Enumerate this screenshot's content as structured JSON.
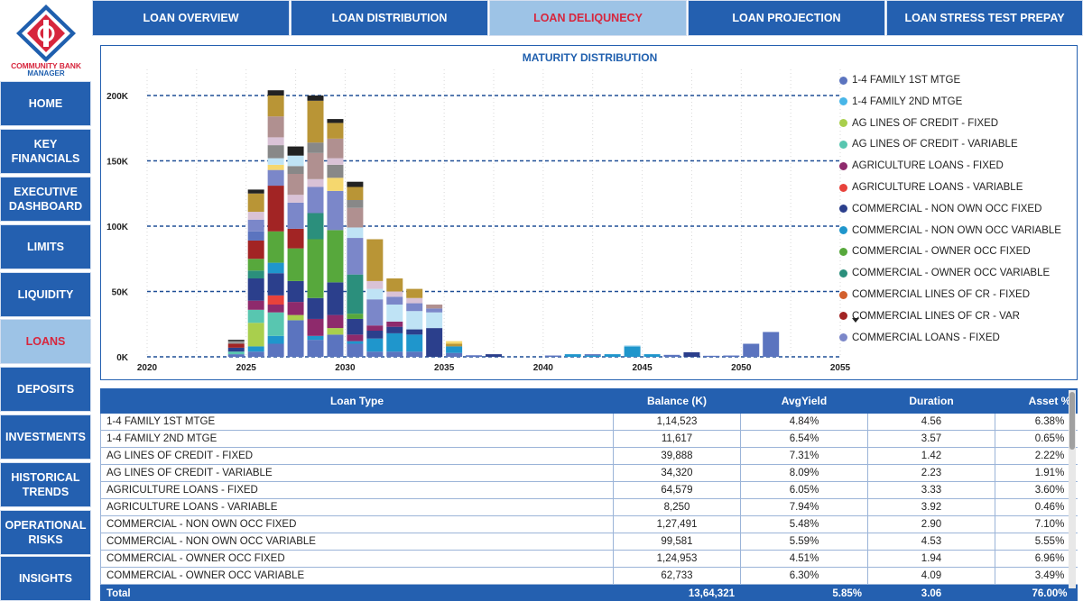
{
  "brand": {
    "line1": "COMMUNITY BANK",
    "line2": "MANAGER",
    "logo_icon": "bank-diamond-logo"
  },
  "colors": {
    "nav": "#2460b0",
    "nav_active": "#9dc3e6",
    "active_text": "#d7263d",
    "accent": "#1f5fae"
  },
  "sidebar": {
    "items": [
      {
        "label": "HOME",
        "active": false
      },
      {
        "label": "KEY\nFINANCIALS",
        "active": false
      },
      {
        "label": "EXECUTIVE\nDASHBOARD",
        "active": false
      },
      {
        "label": "LIMITS",
        "active": false
      },
      {
        "label": "LIQUIDITY",
        "active": false
      },
      {
        "label": "LOANS",
        "active": true
      },
      {
        "label": "DEPOSITS",
        "active": false
      },
      {
        "label": "INVESTMENTS",
        "active": false
      },
      {
        "label": "HISTORICAL\nTRENDS",
        "active": false
      },
      {
        "label": "OPERATIONAL\nRISKS",
        "active": false
      },
      {
        "label": "INSIGHTS",
        "active": false
      }
    ]
  },
  "tabs": [
    {
      "label": "LOAN OVERVIEW",
      "active": false
    },
    {
      "label": "LOAN DISTRIBUTION",
      "active": false
    },
    {
      "label": "LOAN DELIQUNECY",
      "active": true
    },
    {
      "label": "LOAN PROJECTION",
      "active": false
    },
    {
      "label": "LOAN STRESS TEST PREPAY",
      "active": false
    }
  ],
  "chart_data": {
    "type": "bar",
    "stacked": true,
    "title": "MATURITY DISTRIBUTION",
    "xlabel": "",
    "ylabel": "",
    "xlim": [
      2020,
      2055
    ],
    "ylim": [
      0,
      220000
    ],
    "x_ticks": [
      "2020",
      "2025",
      "2030",
      "2035",
      "2040",
      "2045",
      "2050",
      "2055"
    ],
    "y_ticks": [
      "0K",
      "50K",
      "100K",
      "150K",
      "200K"
    ],
    "y_tick_values": [
      0,
      50000,
      100000,
      150000,
      200000
    ],
    "grid": "horizontal-dashed",
    "legend": {
      "position": "right",
      "has_more": true,
      "more_icon": "caret-down-icon"
    },
    "series": [
      {
        "name": "1-4 FAMILY 1ST MTGE",
        "color": "#5b74bf"
      },
      {
        "name": "1-4 FAMILY 2ND MTGE",
        "color": "#48b6e8"
      },
      {
        "name": "AG LINES OF CREDIT - FIXED",
        "color": "#a9cf4d"
      },
      {
        "name": "AG LINES OF CREDIT - VARIABLE",
        "color": "#58c6b0"
      },
      {
        "name": "AGRICULTURE LOANS - FIXED",
        "color": "#8e2a6c"
      },
      {
        "name": "AGRICULTURE LOANS - VARIABLE",
        "color": "#e8423b"
      },
      {
        "name": "COMMERCIAL - NON OWN OCC FIXED",
        "color": "#2b3f8c"
      },
      {
        "name": "COMMERCIAL - NON OWN OCC VARIABLE",
        "color": "#1f96cc"
      },
      {
        "name": "COMMERCIAL - OWNER OCC FIXED",
        "color": "#57a83c"
      },
      {
        "name": "COMMERCIAL - OWNER OCC VARIABLE",
        "color": "#2b8f7c"
      },
      {
        "name": "COMMERCIAL LINES OF CR - FIXED",
        "color": "#d3602e"
      },
      {
        "name": "COMMERCIAL LINES OF CR - VAR",
        "color": "#a22424"
      },
      {
        "name": "COMMERCIAL LOANS - FIXED",
        "color": "#7b87c9"
      }
    ],
    "bars": [
      {
        "year": 2024,
        "segments": [
          [
            "#5b74bf",
            2000
          ],
          [
            "#58c6b0",
            2000
          ],
          [
            "#2b3f8c",
            3000
          ],
          [
            "#a22424",
            3000
          ],
          [
            "#999999",
            2000
          ],
          [
            "#222222",
            1000
          ]
        ]
      },
      {
        "year": 2025,
        "segments": [
          [
            "#5b74bf",
            4000
          ],
          [
            "#1f96cc",
            4000
          ],
          [
            "#a9cf4d",
            18000
          ],
          [
            "#58c6b0",
            10000
          ],
          [
            "#8e2a6c",
            7000
          ],
          [
            "#2b3f8c",
            17000
          ],
          [
            "#2b8f7c",
            6000
          ],
          [
            "#57a83c",
            9000
          ],
          [
            "#a22424",
            14000
          ],
          [
            "#5b74bf",
            7000
          ],
          [
            "#7b87c9",
            9000
          ],
          [
            "#d9c2d6",
            6000
          ],
          [
            "#b99536",
            14000
          ],
          [
            "#222222",
            3000
          ]
        ]
      },
      {
        "year": 2026,
        "segments": [
          [
            "#5b74bf",
            10000
          ],
          [
            "#1f96cc",
            6000
          ],
          [
            "#58c6b0",
            18000
          ],
          [
            "#8e2a6c",
            6000
          ],
          [
            "#e8423b",
            7000
          ],
          [
            "#2b3f8c",
            17000
          ],
          [
            "#1f96cc",
            8000
          ],
          [
            "#57a83c",
            24000
          ],
          [
            "#a22424",
            35000
          ],
          [
            "#7b87c9",
            12000
          ],
          [
            "#f5d76e",
            4000
          ],
          [
            "#bfe3f5",
            5000
          ],
          [
            "#888888",
            10000
          ],
          [
            "#d9c2d6",
            6000
          ],
          [
            "#b09090",
            16000
          ],
          [
            "#b99536",
            16000
          ],
          [
            "#222222",
            4000
          ]
        ]
      },
      {
        "year": 2027,
        "segments": [
          [
            "#5b74bf",
            28000
          ],
          [
            "#a9cf4d",
            4000
          ],
          [
            "#8e2a6c",
            10000
          ],
          [
            "#2b3f8c",
            16000
          ],
          [
            "#57a83c",
            25000
          ],
          [
            "#a22424",
            15000
          ],
          [
            "#7b87c9",
            20000
          ],
          [
            "#d9c2d6",
            6000
          ],
          [
            "#b09090",
            16000
          ],
          [
            "#888888",
            6000
          ],
          [
            "#bfe3f5",
            8000
          ],
          [
            "#222222",
            7000
          ]
        ]
      },
      {
        "year": 2028,
        "segments": [
          [
            "#5b74bf",
            13000
          ],
          [
            "#1f96cc",
            3000
          ],
          [
            "#8e2a6c",
            13000
          ],
          [
            "#2b3f8c",
            16000
          ],
          [
            "#57a83c",
            45000
          ],
          [
            "#2b8f7c",
            20000
          ],
          [
            "#7b87c9",
            20000
          ],
          [
            "#d9c2d6",
            6000
          ],
          [
            "#b09090",
            20000
          ],
          [
            "#888888",
            8000
          ],
          [
            "#b99536",
            32000
          ],
          [
            "#222222",
            4000
          ]
        ]
      },
      {
        "year": 2029,
        "segments": [
          [
            "#5b74bf",
            17000
          ],
          [
            "#a9cf4d",
            5000
          ],
          [
            "#8e2a6c",
            10000
          ],
          [
            "#2b3f8c",
            25000
          ],
          [
            "#57a83c",
            40000
          ],
          [
            "#7b87c9",
            30000
          ],
          [
            "#f5d76e",
            10000
          ],
          [
            "#888888",
            10000
          ],
          [
            "#d9c2d6",
            5000
          ],
          [
            "#b09090",
            15000
          ],
          [
            "#b99536",
            12000
          ],
          [
            "#222222",
            3000
          ]
        ]
      },
      {
        "year": 2030,
        "segments": [
          [
            "#5b74bf",
            10000
          ],
          [
            "#1f96cc",
            2000
          ],
          [
            "#8e2a6c",
            5000
          ],
          [
            "#2b3f8c",
            12000
          ],
          [
            "#57a83c",
            4000
          ],
          [
            "#2b8f7c",
            30000
          ],
          [
            "#7b87c9",
            28000
          ],
          [
            "#bfe3f5",
            8000
          ],
          [
            "#b09090",
            15000
          ],
          [
            "#888888",
            6000
          ],
          [
            "#b99536",
            10000
          ],
          [
            "#222222",
            4000
          ]
        ]
      },
      {
        "year": 2031,
        "segments": [
          [
            "#5b74bf",
            4000
          ],
          [
            "#1f96cc",
            10000
          ],
          [
            "#2b3f8c",
            6000
          ],
          [
            "#8e2a6c",
            4000
          ],
          [
            "#7b87c9",
            20000
          ],
          [
            "#bfe3f5",
            8000
          ],
          [
            "#d9c2d6",
            6000
          ],
          [
            "#b99536",
            32000
          ]
        ]
      },
      {
        "year": 2032,
        "segments": [
          [
            "#5b74bf",
            4000
          ],
          [
            "#1f96cc",
            14000
          ],
          [
            "#2b3f8c",
            5000
          ],
          [
            "#8e2a6c",
            4000
          ],
          [
            "#bfe3f5",
            13000
          ],
          [
            "#7b87c9",
            6000
          ],
          [
            "#d9c2d6",
            4000
          ],
          [
            "#b99536",
            10000
          ]
        ]
      },
      {
        "year": 2033,
        "segments": [
          [
            "#5b74bf",
            4000
          ],
          [
            "#1f96cc",
            13000
          ],
          [
            "#2b3f8c",
            4000
          ],
          [
            "#bfe3f5",
            14000
          ],
          [
            "#7b87c9",
            6000
          ],
          [
            "#d9c2d6",
            4000
          ],
          [
            "#b99536",
            7000
          ]
        ]
      },
      {
        "year": 2034,
        "segments": [
          [
            "#2b3f8c",
            22000
          ],
          [
            "#bfe3f5",
            12000
          ],
          [
            "#7b87c9",
            3000
          ],
          [
            "#b09090",
            3000
          ]
        ]
      },
      {
        "year": 2035,
        "segments": [
          [
            "#5b74bf",
            3000
          ],
          [
            "#1f96cc",
            5000
          ],
          [
            "#b99536",
            2000
          ],
          [
            "#f5d76e",
            2000
          ]
        ]
      },
      {
        "year": 2036,
        "segments": [
          [
            "#5b74bf",
            1200
          ]
        ]
      },
      {
        "year": 2037,
        "segments": [
          [
            "#2b3f8c",
            2000
          ]
        ]
      },
      {
        "year": 2040,
        "segments": [
          [
            "#5b74bf",
            1000
          ]
        ]
      },
      {
        "year": 2041,
        "segments": [
          [
            "#1f96cc",
            2000
          ]
        ]
      },
      {
        "year": 2042,
        "segments": [
          [
            "#1f96cc",
            1000
          ],
          [
            "#5b74bf",
            1000
          ]
        ]
      },
      {
        "year": 2043,
        "segments": [
          [
            "#1f96cc",
            2000
          ]
        ]
      },
      {
        "year": 2044,
        "segments": [
          [
            "#1f96cc",
            8000
          ],
          [
            "#bfe3f5",
            1000
          ]
        ]
      },
      {
        "year": 2045,
        "segments": [
          [
            "#1f96cc",
            2000
          ]
        ]
      },
      {
        "year": 2046,
        "segments": [
          [
            "#5b74bf",
            1500
          ]
        ]
      },
      {
        "year": 2047,
        "segments": [
          [
            "#2b3f8c",
            3500
          ]
        ]
      },
      {
        "year": 2048,
        "segments": [
          [
            "#5b74bf",
            800
          ]
        ]
      },
      {
        "year": 2049,
        "segments": [
          [
            "#5b74bf",
            1000
          ]
        ]
      },
      {
        "year": 2050,
        "segments": [
          [
            "#5b74bf",
            10000
          ]
        ]
      },
      {
        "year": 2051,
        "segments": [
          [
            "#5b74bf",
            19000
          ]
        ]
      }
    ]
  },
  "table": {
    "columns": [
      "Loan Type",
      "Balance (K)",
      "AvgYield",
      "Duration",
      "Asset %"
    ],
    "rows": [
      [
        "1-4 FAMILY 1ST MTGE",
        "1,14,523",
        "4.84%",
        "4.56",
        "6.38%"
      ],
      [
        "1-4 FAMILY 2ND MTGE",
        "11,617",
        "6.54%",
        "3.57",
        "0.65%"
      ],
      [
        "AG LINES OF CREDIT - FIXED",
        "39,888",
        "7.31%",
        "1.42",
        "2.22%"
      ],
      [
        "AG LINES OF CREDIT - VARIABLE",
        "34,320",
        "8.09%",
        "2.23",
        "1.91%"
      ],
      [
        "AGRICULTURE LOANS - FIXED",
        "64,579",
        "6.05%",
        "3.33",
        "3.60%"
      ],
      [
        "AGRICULTURE LOANS - VARIABLE",
        "8,250",
        "7.94%",
        "3.92",
        "0.46%"
      ],
      [
        "COMMERCIAL - NON OWN OCC FIXED",
        "1,27,491",
        "5.48%",
        "2.90",
        "7.10%"
      ],
      [
        "COMMERCIAL - NON OWN OCC VARIABLE",
        "99,581",
        "5.59%",
        "4.53",
        "5.55%"
      ],
      [
        "COMMERCIAL - OWNER OCC FIXED",
        "1,24,953",
        "4.51%",
        "1.94",
        "6.96%"
      ],
      [
        "COMMERCIAL - OWNER OCC VARIABLE",
        "62,733",
        "6.30%",
        "4.09",
        "3.49%"
      ]
    ],
    "total": [
      "Total",
      "13,64,321",
      "5.85%",
      "3.06",
      "76.00%"
    ]
  }
}
